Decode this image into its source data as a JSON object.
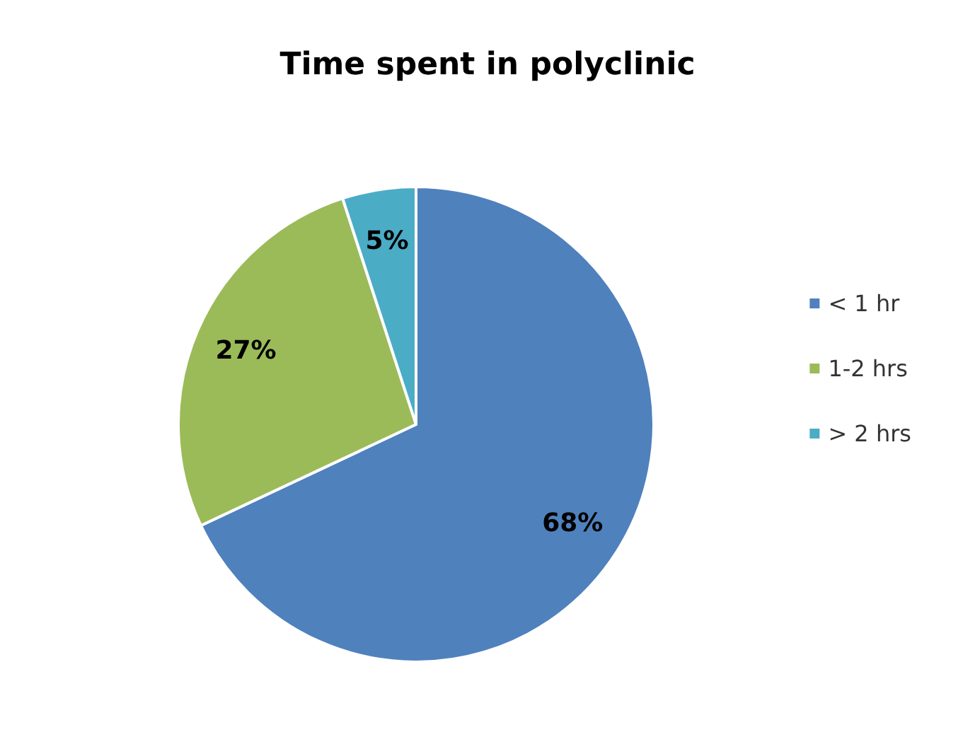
{
  "chart_data": {
    "type": "pie",
    "title": "Time spent in polyclinic",
    "categories": [
      "< 1 hr",
      "1-2 hrs",
      "> 2 hrs"
    ],
    "values": [
      68,
      27,
      5
    ],
    "colors": [
      "#4f81bd",
      "#9bbb59",
      "#4bacc6"
    ],
    "value_labels": [
      "68%",
      "27%",
      "5%"
    ],
    "legend": "right"
  }
}
